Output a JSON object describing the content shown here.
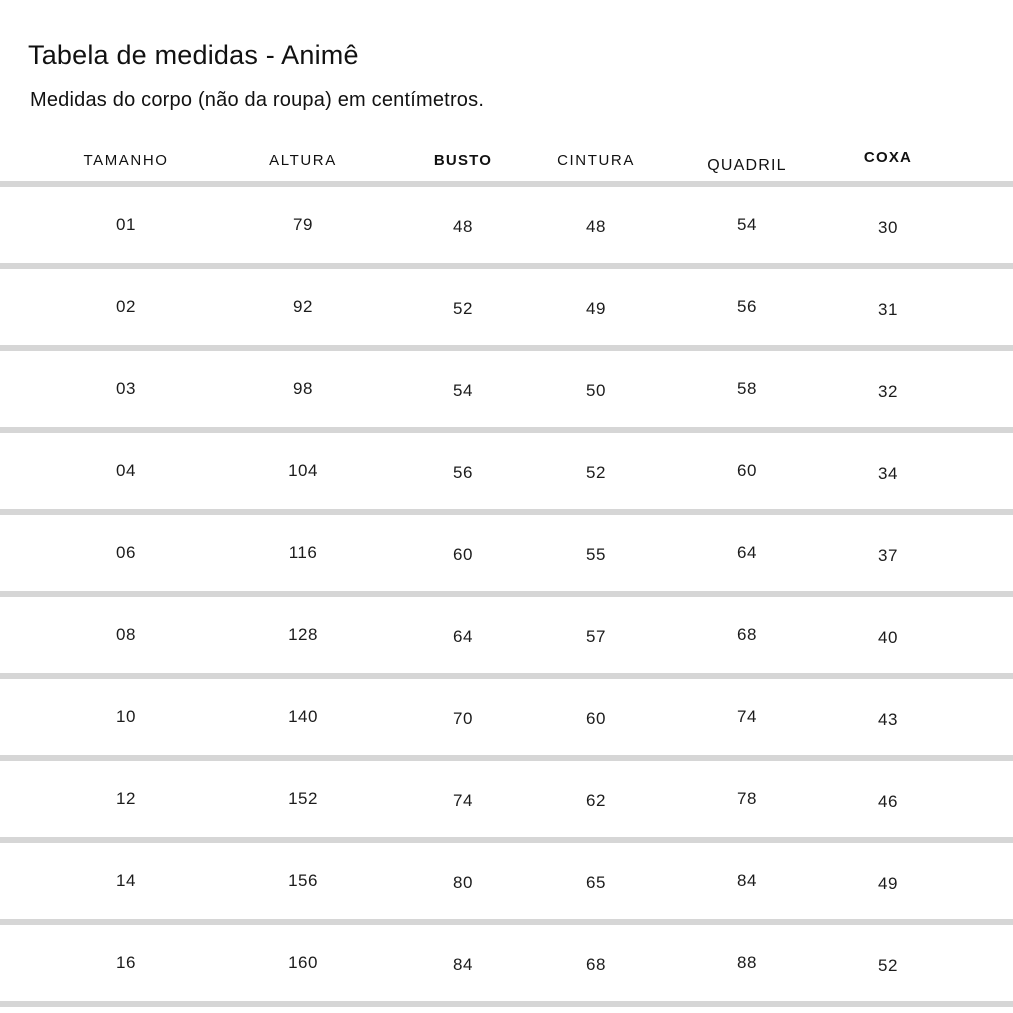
{
  "header": {
    "title": "Tabela de medidas - Animê",
    "subtitle": "Medidas do corpo (não da roupa) em centímetros."
  },
  "chart_data": {
    "type": "table",
    "title": "Tabela de medidas - Animê",
    "subtitle": "Medidas do corpo (não da roupa) em centímetros.",
    "units": "centímetros",
    "columns": [
      "TAMANHO",
      "ALTURA",
      "BUSTO",
      "CINTURA",
      "QUADRIL",
      "COXA"
    ],
    "rows": [
      [
        "01",
        79,
        48,
        48,
        54,
        30
      ],
      [
        "02",
        92,
        52,
        49,
        56,
        31
      ],
      [
        "03",
        98,
        54,
        50,
        58,
        32
      ],
      [
        "04",
        104,
        56,
        52,
        60,
        34
      ],
      [
        "06",
        116,
        60,
        55,
        64,
        37
      ],
      [
        "08",
        128,
        64,
        57,
        68,
        40
      ],
      [
        "10",
        140,
        70,
        60,
        74,
        43
      ],
      [
        "12",
        152,
        74,
        62,
        78,
        46
      ],
      [
        "14",
        156,
        80,
        65,
        84,
        49
      ],
      [
        "16",
        160,
        84,
        68,
        88,
        52
      ]
    ]
  },
  "colors": {
    "background": "#ffffff",
    "text": "#1a1a1a",
    "divider": "#d6d6d6"
  }
}
